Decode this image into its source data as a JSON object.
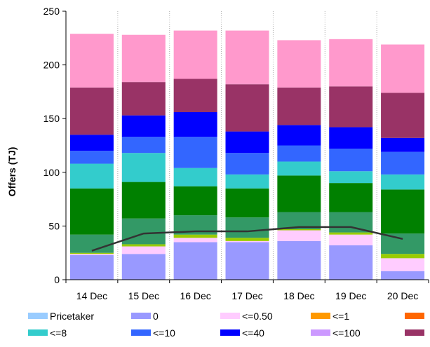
{
  "chart_data": {
    "type": "bar",
    "stacked": true,
    "title": "",
    "xlabel": "",
    "ylabel": "Offers (TJ)",
    "ylim": [
      0,
      250
    ],
    "yticks": [
      0,
      50,
      100,
      150,
      200,
      250
    ],
    "grid": "vertical-dotted",
    "legend_position": "bottom",
    "categories": [
      "14 Dec",
      "15 Dec",
      "16 Dec",
      "17 Dec",
      "18 Dec",
      "19 Dec",
      "20 Dec"
    ],
    "series": [
      {
        "name": "Pricetaker",
        "color": "#99ccff",
        "values": [
          0,
          0,
          0,
          0,
          0,
          0,
          0
        ]
      },
      {
        "name": "0",
        "color": "#9999ff",
        "values": [
          23,
          24,
          35,
          35,
          36,
          32,
          8
        ]
      },
      {
        "name": "<=0.50",
        "color": "#ffccff",
        "values": [
          1,
          7,
          4,
          1,
          10,
          10,
          12
        ]
      },
      {
        "name": "<=1",
        "color": "#ff9900",
        "values": [
          0,
          0,
          0,
          0,
          0,
          0,
          0
        ]
      },
      {
        "name": "",
        "color": "#ff6600",
        "values": [
          0,
          0,
          0,
          0,
          0,
          0,
          0
        ]
      },
      {
        "name": "",
        "color": "#99cc00",
        "values": [
          1,
          2,
          3,
          3,
          1,
          2,
          4
        ]
      },
      {
        "name": "",
        "color": "#339966",
        "values": [
          17,
          24,
          18,
          19,
          16,
          19,
          19
        ]
      },
      {
        "name": "",
        "color": "#008000",
        "values": [
          43,
          34,
          27,
          27,
          34,
          27,
          41
        ]
      },
      {
        "name": "<=8",
        "color": "#33cccc",
        "values": [
          23,
          27,
          17,
          13,
          13,
          11,
          14
        ]
      },
      {
        "name": "<=10",
        "color": "#3366ff",
        "values": [
          12,
          15,
          29,
          20,
          15,
          21,
          21
        ]
      },
      {
        "name": "<=40",
        "color": "#0000ff",
        "values": [
          15,
          20,
          23,
          20,
          19,
          20,
          13
        ]
      },
      {
        "name": "<=100",
        "color": "#cc99ff",
        "values": [
          0,
          0,
          0,
          0,
          0,
          0,
          0
        ]
      },
      {
        "name": "",
        "color": "#993366",
        "values": [
          44,
          31,
          31,
          44,
          35,
          38,
          42
        ]
      },
      {
        "name": "",
        "color": "#ff99cc",
        "values": [
          50,
          44,
          45,
          50,
          44,
          44,
          45
        ]
      }
    ],
    "line": {
      "name": "",
      "color": "#333333",
      "values": [
        27,
        43,
        45,
        45,
        49,
        49,
        38
      ]
    },
    "legend": [
      {
        "label": "Pricetaker",
        "color": "#99ccff"
      },
      {
        "label": "0",
        "color": "#9999ff"
      },
      {
        "label": "<=0.50",
        "color": "#ffccff"
      },
      {
        "label": "<=1",
        "color": "#ff9900"
      },
      {
        "label": "",
        "color": "#ff6600"
      },
      {
        "label": "<=8",
        "color": "#33cccc"
      },
      {
        "label": "<=10",
        "color": "#3366ff"
      },
      {
        "label": "<=40",
        "color": "#0000ff"
      },
      {
        "label": "<=100",
        "color": "#cc99ff"
      },
      {
        "label": "",
        "color": "#993366"
      }
    ]
  }
}
